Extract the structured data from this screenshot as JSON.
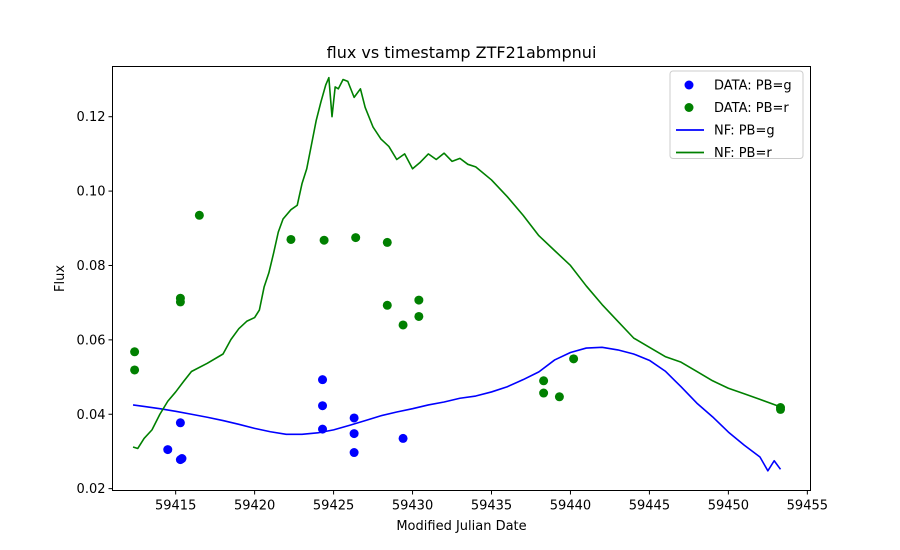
{
  "chart_data": {
    "type": "scatter",
    "title": "flux vs timestamp ZTF21abmpnui",
    "xlabel": "Modified Julian Date",
    "ylabel": "Flux",
    "xlim": [
      59411.0,
      59455.2
    ],
    "ylim": [
      0.0195,
      0.1335
    ],
    "xticks": [
      59415,
      59420,
      59425,
      59430,
      59435,
      59440,
      59445,
      59450,
      59455
    ],
    "yticks": [
      0.02,
      0.04,
      0.06,
      0.08,
      0.1,
      0.12
    ],
    "ytick_labels": [
      "0.02",
      "0.04",
      "0.06",
      "0.08",
      "0.10",
      "0.12"
    ],
    "grid": false,
    "legend_position": "top-right",
    "series": [
      {
        "name": "DATA: PB=g",
        "kind": "scatter",
        "color": "#0000ff",
        "points": [
          [
            59414.5,
            0.0305
          ],
          [
            59415.3,
            0.0377
          ],
          [
            59415.3,
            0.0278
          ],
          [
            59415.4,
            0.0281
          ],
          [
            59424.3,
            0.0493
          ],
          [
            59424.3,
            0.0423
          ],
          [
            59424.3,
            0.036
          ],
          [
            59426.3,
            0.039
          ],
          [
            59426.3,
            0.0348
          ],
          [
            59426.3,
            0.0297
          ],
          [
            59429.4,
            0.0335
          ]
        ]
      },
      {
        "name": "DATA: PB=r",
        "kind": "scatter",
        "color": "#008000",
        "points": [
          [
            59412.4,
            0.0568
          ],
          [
            59412.4,
            0.0519
          ],
          [
            59415.3,
            0.0712
          ],
          [
            59415.3,
            0.0702
          ],
          [
            59416.5,
            0.0935
          ],
          [
            59422.3,
            0.087
          ],
          [
            59424.4,
            0.0868
          ],
          [
            59426.4,
            0.0875
          ],
          [
            59428.4,
            0.0862
          ],
          [
            59428.4,
            0.0693
          ],
          [
            59429.4,
            0.064
          ],
          [
            59430.4,
            0.0707
          ],
          [
            59430.4,
            0.0663
          ],
          [
            59438.3,
            0.049
          ],
          [
            59438.3,
            0.0457
          ],
          [
            59439.3,
            0.0447
          ],
          [
            59440.2,
            0.0549
          ],
          [
            59453.3,
            0.0418
          ],
          [
            59453.3,
            0.0413
          ]
        ]
      },
      {
        "name": "NF: PB=g",
        "kind": "line",
        "color": "#0000ff",
        "points": [
          [
            59412.3,
            0.0425
          ],
          [
            59413.0,
            0.0421
          ],
          [
            59414.0,
            0.0415
          ],
          [
            59415.0,
            0.0408
          ],
          [
            59416.0,
            0.04
          ],
          [
            59417.0,
            0.0392
          ],
          [
            59418.0,
            0.0383
          ],
          [
            59419.0,
            0.0373
          ],
          [
            59420.0,
            0.0362
          ],
          [
            59421.0,
            0.0353
          ],
          [
            59422.0,
            0.0346
          ],
          [
            59423.0,
            0.0346
          ],
          [
            59424.0,
            0.035
          ],
          [
            59425.0,
            0.0358
          ],
          [
            59426.0,
            0.037
          ],
          [
            59427.0,
            0.0383
          ],
          [
            59428.0,
            0.0396
          ],
          [
            59429.0,
            0.0406
          ],
          [
            59430.0,
            0.0415
          ],
          [
            59431.0,
            0.0425
          ],
          [
            59432.0,
            0.0433
          ],
          [
            59433.0,
            0.0443
          ],
          [
            59434.0,
            0.0449
          ],
          [
            59435.0,
            0.046
          ],
          [
            59436.0,
            0.0474
          ],
          [
            59437.0,
            0.0493
          ],
          [
            59438.0,
            0.0514
          ],
          [
            59439.0,
            0.0546
          ],
          [
            59440.0,
            0.0566
          ],
          [
            59441.0,
            0.0578
          ],
          [
            59442.0,
            0.058
          ],
          [
            59443.0,
            0.0573
          ],
          [
            59444.0,
            0.0562
          ],
          [
            59445.0,
            0.0545
          ],
          [
            59446.0,
            0.0516
          ],
          [
            59447.0,
            0.0474
          ],
          [
            59448.0,
            0.043
          ],
          [
            59449.0,
            0.0393
          ],
          [
            59450.0,
            0.0352
          ],
          [
            59451.0,
            0.0317
          ],
          [
            59452.0,
            0.0285
          ],
          [
            59452.5,
            0.0248
          ],
          [
            59452.9,
            0.0275
          ],
          [
            59453.3,
            0.0252
          ]
        ]
      },
      {
        "name": "NF: PB=r",
        "kind": "line",
        "color": "#008000",
        "points": [
          [
            59412.3,
            0.0312
          ],
          [
            59412.6,
            0.0308
          ],
          [
            59413.0,
            0.0335
          ],
          [
            59413.5,
            0.0358
          ],
          [
            59414.0,
            0.04
          ],
          [
            59414.5,
            0.0435
          ],
          [
            59415.0,
            0.046
          ],
          [
            59415.5,
            0.0488
          ],
          [
            59416.0,
            0.0515
          ],
          [
            59417.0,
            0.0537
          ],
          [
            59418.0,
            0.0562
          ],
          [
            59418.5,
            0.0601
          ],
          [
            59419.0,
            0.063
          ],
          [
            59419.5,
            0.065
          ],
          [
            59420.0,
            0.066
          ],
          [
            59420.3,
            0.068
          ],
          [
            59420.6,
            0.0742
          ],
          [
            59420.9,
            0.078
          ],
          [
            59421.2,
            0.0833
          ],
          [
            59421.5,
            0.089
          ],
          [
            59421.8,
            0.0925
          ],
          [
            59422.3,
            0.095
          ],
          [
            59422.7,
            0.0962
          ],
          [
            59423.0,
            0.102
          ],
          [
            59423.3,
            0.106
          ],
          [
            59423.6,
            0.1125
          ],
          [
            59423.9,
            0.119
          ],
          [
            59424.2,
            0.124
          ],
          [
            59424.5,
            0.1285
          ],
          [
            59424.7,
            0.1305
          ],
          [
            59424.9,
            0.12
          ],
          [
            59425.1,
            0.128
          ],
          [
            59425.3,
            0.1275
          ],
          [
            59425.6,
            0.13
          ],
          [
            59425.9,
            0.1295
          ],
          [
            59426.3,
            0.1252
          ],
          [
            59426.7,
            0.1275
          ],
          [
            59427.0,
            0.1225
          ],
          [
            59427.5,
            0.1172
          ],
          [
            59428.0,
            0.114
          ],
          [
            59428.5,
            0.112
          ],
          [
            59429.0,
            0.1085
          ],
          [
            59429.5,
            0.11
          ],
          [
            59430.0,
            0.106
          ],
          [
            59430.5,
            0.1078
          ],
          [
            59431.0,
            0.11
          ],
          [
            59431.5,
            0.1085
          ],
          [
            59432.0,
            0.1102
          ],
          [
            59432.5,
            0.108
          ],
          [
            59433.0,
            0.1088
          ],
          [
            59433.5,
            0.1072
          ],
          [
            59434.0,
            0.1065
          ],
          [
            59435.0,
            0.103
          ],
          [
            59436.0,
            0.0985
          ],
          [
            59437.0,
            0.0935
          ],
          [
            59438.0,
            0.088
          ],
          [
            59439.0,
            0.084
          ],
          [
            59440.0,
            0.08
          ],
          [
            59441.0,
            0.0745
          ],
          [
            59442.0,
            0.0695
          ],
          [
            59443.0,
            0.065
          ],
          [
            59444.0,
            0.0605
          ],
          [
            59445.0,
            0.058
          ],
          [
            59446.0,
            0.0555
          ],
          [
            59447.0,
            0.054
          ],
          [
            59448.0,
            0.0515
          ],
          [
            59449.0,
            0.049
          ],
          [
            59450.0,
            0.047
          ],
          [
            59451.0,
            0.0455
          ],
          [
            59452.0,
            0.044
          ],
          [
            59453.3,
            0.042
          ]
        ]
      }
    ]
  }
}
